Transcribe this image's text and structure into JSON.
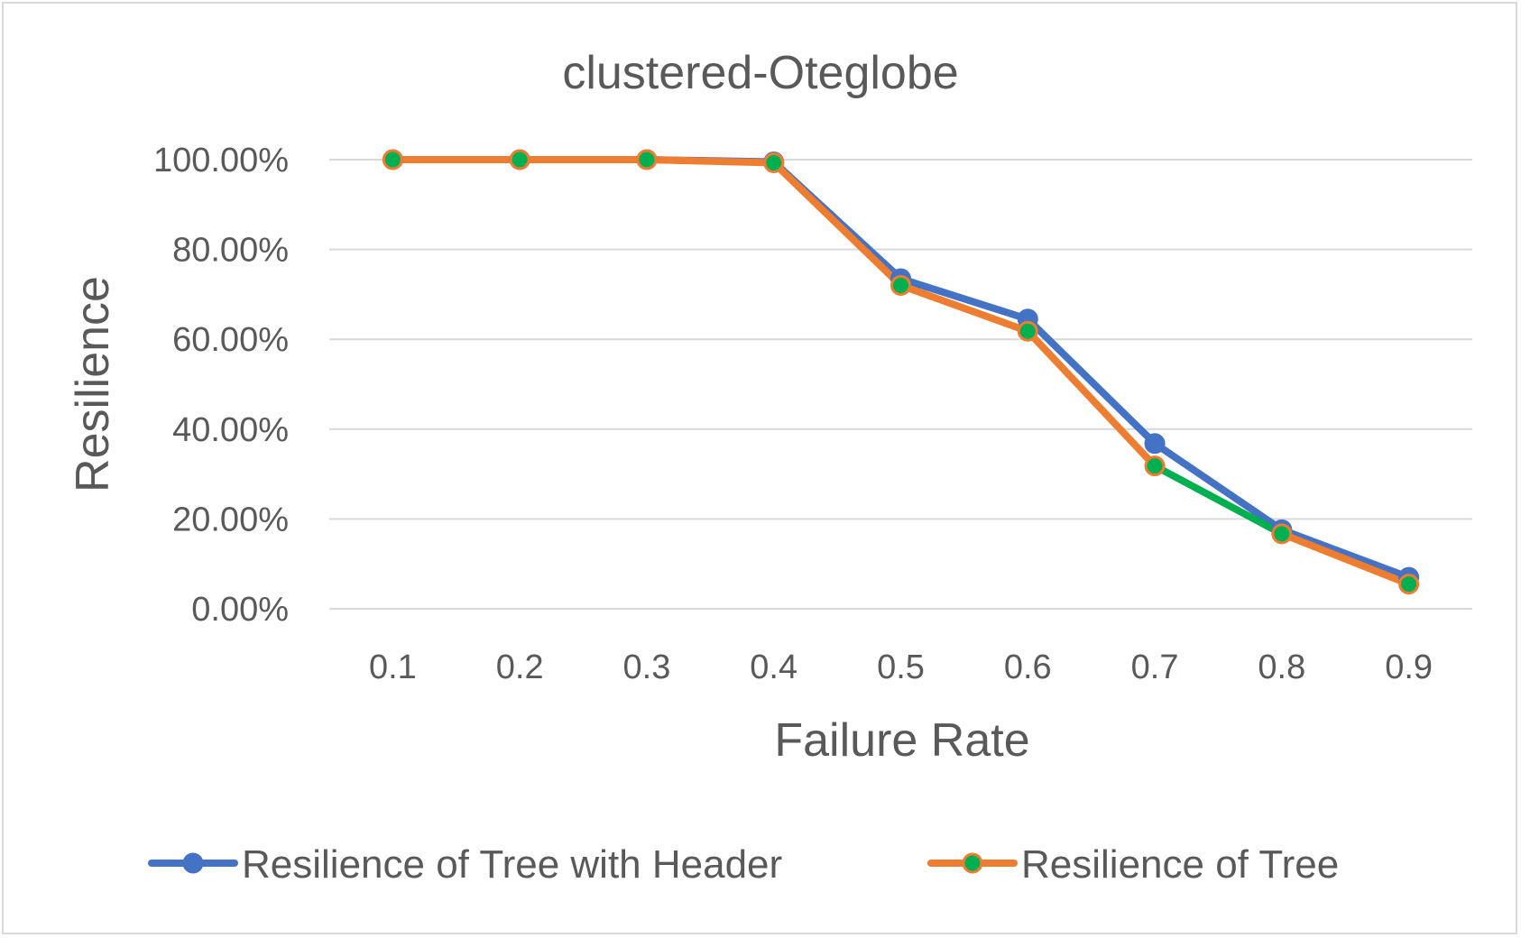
{
  "chart_data": {
    "type": "line",
    "title": "clustered-Oteglobe",
    "xlabel": "Failure Rate",
    "ylabel": "Resilience",
    "categories": [
      "0.1",
      "0.2",
      "0.3",
      "0.4",
      "0.5",
      "0.6",
      "0.7",
      "0.8",
      "0.9"
    ],
    "ylim": [
      0,
      1
    ],
    "y_ticks": [
      {
        "value": 0.0,
        "label": "0.00%"
      },
      {
        "value": 0.2,
        "label": "20.00%"
      },
      {
        "value": 0.4,
        "label": "40.00%"
      },
      {
        "value": 0.6,
        "label": "60.00%"
      },
      {
        "value": 0.8,
        "label": "80.00%"
      },
      {
        "value": 1.0,
        "label": "100.00%"
      }
    ],
    "grid": true,
    "legend_position": "bottom",
    "series": [
      {
        "name": "Resilience of Tree with Header",
        "values": [
          1.0,
          1.0,
          1.0,
          0.995,
          0.735,
          0.645,
          0.368,
          0.176,
          0.07
        ],
        "line_color": "#4472c4",
        "marker_color": "#4472c4"
      },
      {
        "name": "Resilience of Tree",
        "values": [
          1.0,
          1.0,
          1.0,
          0.993,
          0.72,
          0.618,
          0.318,
          0.167,
          0.055
        ],
        "line_color": "#ed7d31",
        "marker_color": "#00b050",
        "segment_colors": [
          "#ed7d31",
          "#ed7d31",
          "#ed7d31",
          "#ed7d31",
          "#ed7d31",
          "#ed7d31",
          "#00b050",
          "#ed7d31"
        ]
      }
    ]
  },
  "colors": {
    "gridline": "#d9d9d9",
    "text": "#595959",
    "frame": "#d9d9d9"
  }
}
